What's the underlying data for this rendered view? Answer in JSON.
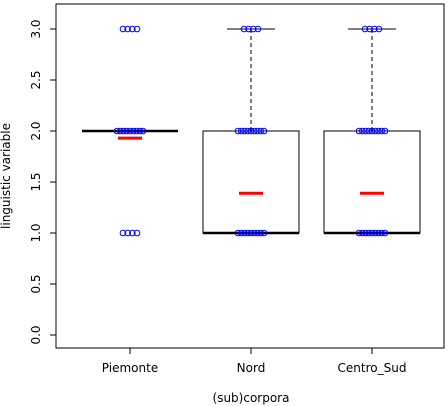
{
  "chart_data": {
    "type": "boxplot",
    "xlabel": "(sub)corpora",
    "ylabel": "linguistic variable",
    "ylim": [
      0.0,
      3.0
    ],
    "yticks": [
      "0.0",
      "0.5",
      "1.0",
      "1.5",
      "2.0",
      "2.5",
      "3.0"
    ],
    "categories": [
      "Piemonte",
      "Nord",
      "Centro_Sud"
    ],
    "boxes": [
      {
        "category": "Piemonte",
        "q1": 2.0,
        "median": 2.0,
        "q3": 2.0,
        "whisker_low": 2.0,
        "whisker_high": 2.0,
        "mean": 1.93,
        "points": [
          1.0,
          2.0,
          3.0
        ]
      },
      {
        "category": "Nord",
        "q1": 1.0,
        "median": 1.0,
        "q3": 2.0,
        "whisker_low": 1.0,
        "whisker_high": 3.0,
        "mean": 1.39,
        "points": [
          1.0,
          2.0,
          3.0
        ]
      },
      {
        "category": "Centro_Sud",
        "q1": 1.0,
        "median": 1.0,
        "q3": 2.0,
        "whisker_low": 1.0,
        "whisker_high": 3.0,
        "mean": 1.39,
        "points": [
          1.0,
          2.0,
          3.0
        ]
      }
    ],
    "colors": {
      "points": "#0000ff",
      "mean": "#ff0000",
      "box": "#000000"
    },
    "grid": false
  }
}
